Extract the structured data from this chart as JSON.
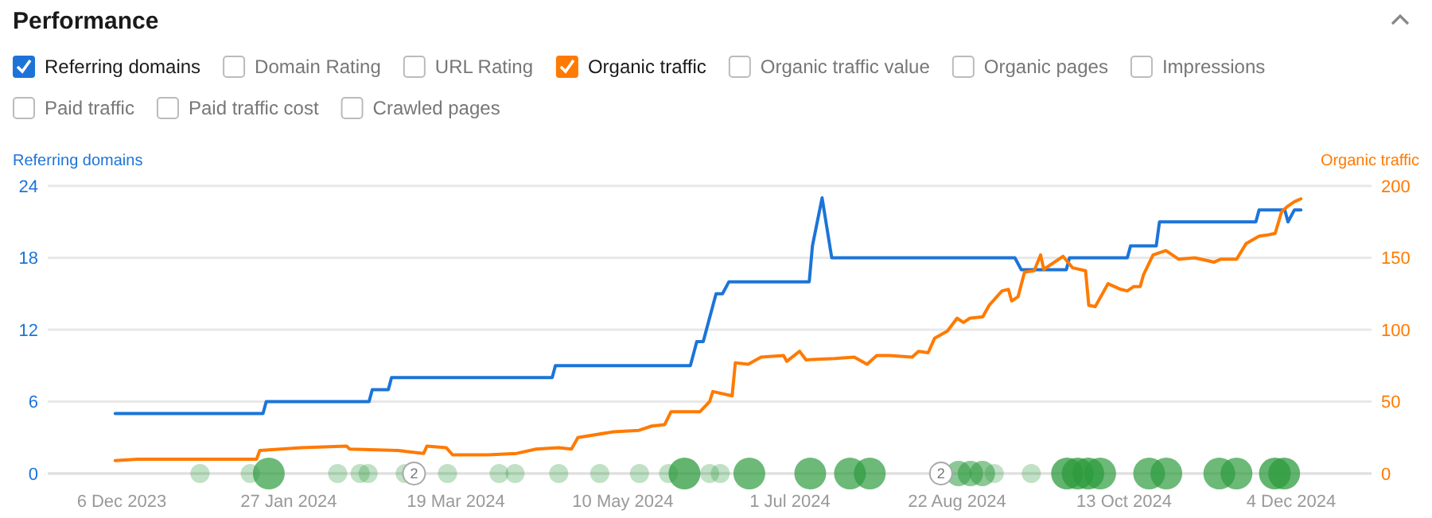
{
  "chart_data": {
    "type": "line",
    "title": "Performance",
    "ylabel": "Referring domains",
    "y2label": "Organic traffic",
    "legend": "top left",
    "grid": "y",
    "annotations": [
      "Domain Rating",
      "URL Rating",
      "Organic traffic value",
      "Organic pages",
      "Impressions",
      "Paid traffic",
      "Paid traffic cost",
      "Crawled pages",
      {
        "text": "2",
        "x": "2024-03-06"
      },
      {
        "text": "2",
        "x": "2024-08-17"
      }
    ],
    "xlim": [
      "2023-11-13",
      "2024-12-29"
    ],
    "xticks": [
      {
        "value": "2023-12-06",
        "label": "6 Dec 2023"
      },
      {
        "value": "2024-01-27",
        "label": "27 Jan 2024"
      },
      {
        "value": "2024-03-19",
        "label": "19 Mar 2024"
      },
      {
        "value": "2024-05-10",
        "label": "10 May 2024"
      },
      {
        "value": "2024-07-01",
        "label": "1 Jul 2024"
      },
      {
        "value": "2024-08-22",
        "label": "22 Aug 2024"
      },
      {
        "value": "2024-10-13",
        "label": "13 Oct 2024"
      },
      {
        "value": "2024-12-04",
        "label": "4 Dec 2024"
      }
    ],
    "ylim": [
      0,
      24
    ],
    "yticks": [
      0,
      6,
      12,
      18,
      24
    ],
    "y2lim": [
      0,
      200
    ],
    "y2ticks": [
      0,
      50,
      100,
      150,
      200
    ],
    "series": [
      {
        "name": "Referring domains",
        "color": "#1c74d8",
        "x": [
          "2023-12-04",
          "2024-01-19",
          "2024-01-20",
          "2024-02-21",
          "2024-02-22",
          "2024-02-27",
          "2024-02-28",
          "2024-04-18",
          "2024-04-19",
          "2024-05-31",
          "2024-06-02",
          "2024-06-04",
          "2024-06-08",
          "2024-06-10",
          "2024-06-12",
          "2024-07-07",
          "2024-07-08",
          "2024-07-11",
          "2024-07-14",
          "2024-09-09",
          "2024-09-11",
          "2024-09-25",
          "2024-09-26",
          "2024-10-14",
          "2024-10-15",
          "2024-10-23",
          "2024-10-24",
          "2024-11-23",
          "2024-11-24",
          "2024-12-02",
          "2024-12-03",
          "2024-12-05",
          "2024-12-07"
        ],
        "values": [
          5,
          5,
          6,
          6,
          7,
          7,
          8,
          8,
          9,
          9,
          11,
          11,
          15,
          15,
          16,
          16,
          19,
          23,
          18,
          18,
          17,
          17,
          18,
          18,
          19,
          19,
          21,
          21,
          22,
          22,
          21,
          22,
          22
        ]
      },
      {
        "name": "Organic traffic",
        "color": "#ff7a00",
        "axis": "y2",
        "x": [
          "2023-12-04",
          "2023-12-11",
          "2024-01-17",
          "2024-01-18",
          "2024-01-31",
          "2024-02-14",
          "2024-02-15",
          "2024-03-01",
          "2024-03-09",
          "2024-03-10",
          "2024-03-16",
          "2024-03-18",
          "2024-03-29",
          "2024-04-07",
          "2024-04-13",
          "2024-04-20",
          "2024-04-24",
          "2024-04-26",
          "2024-05-07",
          "2024-05-15",
          "2024-05-19",
          "2024-05-23",
          "2024-05-25",
          "2024-06-03",
          "2024-06-06",
          "2024-06-07",
          "2024-06-13",
          "2024-06-14",
          "2024-06-18",
          "2024-06-22",
          "2024-06-29",
          "2024-06-30",
          "2024-07-04",
          "2024-07-06",
          "2024-07-15",
          "2024-07-21",
          "2024-07-25",
          "2024-07-28",
          "2024-08-01",
          "2024-08-08",
          "2024-08-10",
          "2024-08-13",
          "2024-08-15",
          "2024-08-19",
          "2024-08-22",
          "2024-08-24",
          "2024-08-26",
          "2024-08-30",
          "2024-09-01",
          "2024-09-05",
          "2024-09-07",
          "2024-09-08",
          "2024-09-10",
          "2024-09-12",
          "2024-09-15",
          "2024-09-17",
          "2024-09-18",
          "2024-09-24",
          "2024-09-27",
          "2024-10-01",
          "2024-10-02",
          "2024-10-04",
          "2024-10-08",
          "2024-10-12",
          "2024-10-14",
          "2024-10-16",
          "2024-10-18",
          "2024-10-19",
          "2024-10-22",
          "2024-10-26",
          "2024-10-30",
          "2024-11-04",
          "2024-11-10",
          "2024-11-12",
          "2024-11-17",
          "2024-11-20",
          "2024-11-24",
          "2024-11-27",
          "2024-11-29",
          "2024-12-01",
          "2024-12-03",
          "2024-12-05",
          "2024-12-07"
        ],
        "values": [
          9,
          10,
          10,
          16,
          18,
          19,
          17,
          16,
          14,
          19,
          18,
          13,
          13,
          14,
          17,
          18,
          17,
          25,
          29,
          30,
          33,
          34,
          43,
          43,
          50,
          57,
          54,
          77,
          76,
          81,
          82,
          78,
          85,
          79,
          80,
          81,
          76,
          82,
          82,
          81,
          85,
          84,
          94,
          99,
          108,
          105,
          108,
          109,
          117,
          127,
          128,
          120,
          123,
          140,
          141,
          152,
          142,
          151,
          143,
          141,
          117,
          116,
          132,
          128,
          127,
          130,
          130,
          138,
          152,
          155,
          149,
          150,
          147,
          149,
          149,
          160,
          165,
          166,
          167,
          182,
          186,
          189,
          191
        ]
      }
    ]
  }
}
